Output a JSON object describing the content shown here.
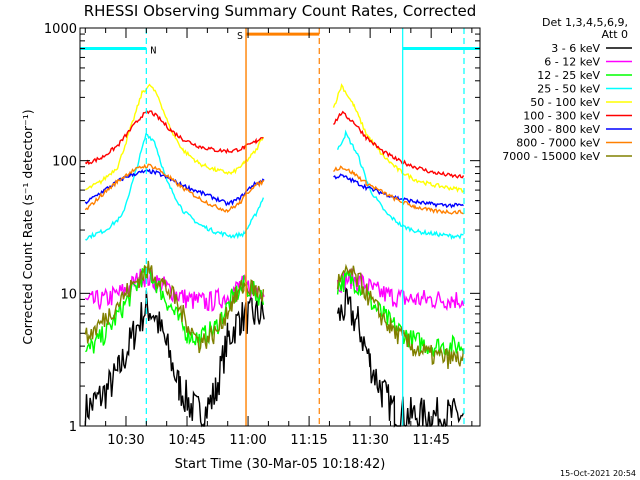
{
  "chart_data": {
    "type": "line",
    "title": "RHESSI Observing Summary Count Rates, Corrected",
    "xlabel": "Start Time (30-Mar-05 10:18:42)",
    "ylabel": "Corrected Count Rate (s⁻¹ detector⁻¹)",
    "x_ticks": [
      "10:30",
      "10:45",
      "11:00",
      "11:15",
      "11:30",
      "11:45"
    ],
    "x_range": [
      "10:18:42",
      "11:57:00"
    ],
    "y_scale": "log",
    "y_ticks": [
      "1",
      "10",
      "100",
      "1000"
    ],
    "ylim": [
      1,
      1000
    ],
    "footer": "15-Oct-2021 20:54",
    "legend_header": [
      "Det 1,3,4,5,6,9,",
      "Att 0"
    ],
    "legend_position": "right",
    "markers": [
      {
        "label": "N",
        "color": "#00ffff",
        "from": "10:18:42",
        "to": "10:35:00",
        "y": 700
      },
      {
        "label": "N",
        "color": "#00ffff",
        "from": "11:38:00",
        "to": "11:57:00",
        "y": 700
      },
      {
        "label": "S",
        "color": "#ff8000",
        "from": "10:59:30",
        "to": "11:17:30",
        "y": 900
      }
    ],
    "series": [
      {
        "name": "3 - 6 keV",
        "color": "#000000",
        "points": [
          [
            "10:20",
            1.3
          ],
          [
            "10:25",
            1.8
          ],
          [
            "10:28",
            2.5
          ],
          [
            "10:32",
            5.0
          ],
          [
            "10:35",
            8.0
          ],
          [
            "10:37",
            7.0
          ],
          [
            "10:40",
            4.0
          ],
          [
            "10:43",
            2.0
          ],
          [
            "10:46",
            1.4
          ],
          [
            "10:49",
            1.2
          ],
          [
            "10:52",
            1.8
          ],
          [
            "10:55",
            4.5
          ],
          [
            "10:58",
            6.5
          ],
          [
            "11:01",
            6.8
          ],
          [
            "11:04",
            7.0
          ]
        ],
        "points2": [
          [
            "11:22",
            6.5
          ],
          [
            "11:24",
            8.0
          ],
          [
            "11:27",
            6.0
          ],
          [
            "11:30",
            3.0
          ],
          [
            "11:33",
            1.8
          ],
          [
            "11:36",
            1.3
          ],
          [
            "11:40",
            1.2
          ],
          [
            "11:45",
            1.2
          ],
          [
            "11:50",
            1.2
          ],
          [
            "11:53",
            1.2
          ]
        ]
      },
      {
        "name": "6 - 12 keV",
        "color": "#ff00ff",
        "points": [
          [
            "10:20",
            8.5
          ],
          [
            "10:25",
            9.0
          ],
          [
            "10:30",
            10.5
          ],
          [
            "10:34",
            13.5
          ],
          [
            "10:37",
            12.5
          ],
          [
            "10:40",
            11.0
          ],
          [
            "10:45",
            9.0
          ],
          [
            "10:50",
            8.5
          ],
          [
            "10:55",
            9.5
          ],
          [
            "10:58",
            11.5
          ],
          [
            "11:01",
            11.0
          ],
          [
            "11:04",
            10.5
          ]
        ],
        "points2": [
          [
            "11:22",
            12.0
          ],
          [
            "11:25",
            13.0
          ],
          [
            "11:28",
            12.0
          ],
          [
            "11:31",
            10.5
          ],
          [
            "11:35",
            9.5
          ],
          [
            "11:40",
            9.0
          ],
          [
            "11:45",
            9.0
          ],
          [
            "11:50",
            9.0
          ],
          [
            "11:53",
            9.0
          ]
        ]
      },
      {
        "name": "12 - 25 keV",
        "color": "#00ff00",
        "points": [
          [
            "10:20",
            3.5
          ],
          [
            "10:25",
            5.0
          ],
          [
            "10:30",
            8.5
          ],
          [
            "10:34",
            13.5
          ],
          [
            "10:36",
            14.0
          ],
          [
            "10:39",
            10.0
          ],
          [
            "10:42",
            7.0
          ],
          [
            "10:45",
            5.0
          ],
          [
            "10:48",
            4.5
          ],
          [
            "10:52",
            5.5
          ],
          [
            "10:56",
            9.0
          ],
          [
            "10:59",
            11.5
          ],
          [
            "11:02",
            10.0
          ],
          [
            "11:04",
            9.0
          ]
        ],
        "points2": [
          [
            "11:22",
            11.5
          ],
          [
            "11:25",
            13.0
          ],
          [
            "11:28",
            11.0
          ],
          [
            "11:31",
            8.0
          ],
          [
            "11:35",
            6.0
          ],
          [
            "11:40",
            4.5
          ],
          [
            "11:45",
            4.0
          ],
          [
            "11:50",
            4.0
          ],
          [
            "11:53",
            4.0
          ]
        ]
      },
      {
        "name": "25 - 50 keV",
        "color": "#00ffff",
        "points": [
          [
            "10:20",
            26
          ],
          [
            "10:25",
            30
          ],
          [
            "10:29",
            38
          ],
          [
            "10:32",
            75
          ],
          [
            "10:35",
            160
          ],
          [
            "10:37",
            140
          ],
          [
            "10:40",
            70
          ],
          [
            "10:44",
            42
          ],
          [
            "10:48",
            33
          ],
          [
            "10:52",
            29
          ],
          [
            "10:56",
            27
          ],
          [
            "10:59",
            28
          ],
          [
            "11:02",
            40
          ],
          [
            "11:04",
            55
          ]
        ],
        "points2": [
          [
            "11:22",
            120
          ],
          [
            "11:24",
            160
          ],
          [
            "11:27",
            110
          ],
          [
            "11:30",
            60
          ],
          [
            "11:34",
            40
          ],
          [
            "11:38",
            32
          ],
          [
            "11:42",
            29
          ],
          [
            "11:46",
            28
          ],
          [
            "11:50",
            27
          ],
          [
            "11:53",
            27
          ]
        ]
      },
      {
        "name": "50 - 100 keV",
        "color": "#ffff00",
        "points": [
          [
            "10:20",
            60
          ],
          [
            "10:24",
            70
          ],
          [
            "10:28",
            90
          ],
          [
            "10:31",
            170
          ],
          [
            "10:34",
            330
          ],
          [
            "10:36",
            370
          ],
          [
            "10:38",
            300
          ],
          [
            "10:41",
            170
          ],
          [
            "10:44",
            120
          ],
          [
            "10:48",
            95
          ],
          [
            "10:52",
            85
          ],
          [
            "10:56",
            80
          ],
          [
            "10:59",
            95
          ],
          [
            "11:02",
            120
          ],
          [
            "11:04",
            160
          ]
        ],
        "points2": [
          [
            "11:21",
            250
          ],
          [
            "11:23",
            370
          ],
          [
            "11:26",
            260
          ],
          [
            "11:29",
            160
          ],
          [
            "11:33",
            110
          ],
          [
            "11:37",
            85
          ],
          [
            "11:41",
            72
          ],
          [
            "11:45",
            66
          ],
          [
            "11:50",
            62
          ],
          [
            "11:53",
            60
          ]
        ]
      },
      {
        "name": "100 - 300 keV",
        "color": "#ff0000",
        "points": [
          [
            "10:20",
            95
          ],
          [
            "10:24",
            105
          ],
          [
            "10:28",
            130
          ],
          [
            "10:31",
            170
          ],
          [
            "10:34",
            220
          ],
          [
            "10:36",
            235
          ],
          [
            "10:38",
            210
          ],
          [
            "10:41",
            170
          ],
          [
            "10:44",
            145
          ],
          [
            "10:48",
            128
          ],
          [
            "10:52",
            120
          ],
          [
            "10:56",
            118
          ],
          [
            "10:59",
            125
          ],
          [
            "11:02",
            140
          ],
          [
            "11:04",
            155
          ]
        ],
        "points2": [
          [
            "11:21",
            190
          ],
          [
            "11:23",
            230
          ],
          [
            "11:26",
            195
          ],
          [
            "11:29",
            150
          ],
          [
            "11:33",
            118
          ],
          [
            "11:37",
            100
          ],
          [
            "11:41",
            90
          ],
          [
            "11:45",
            82
          ],
          [
            "11:50",
            77
          ],
          [
            "11:53",
            75
          ]
        ]
      },
      {
        "name": "300 - 800 keV",
        "color": "#0000ff",
        "points": [
          [
            "10:20",
            48
          ],
          [
            "10:24",
            58
          ],
          [
            "10:28",
            70
          ],
          [
            "10:31",
            78
          ],
          [
            "10:34",
            82
          ],
          [
            "10:36",
            83
          ],
          [
            "10:38",
            80
          ],
          [
            "10:41",
            72
          ],
          [
            "10:44",
            65
          ],
          [
            "10:48",
            58
          ],
          [
            "10:52",
            52
          ],
          [
            "10:55",
            47
          ],
          [
            "10:58",
            52
          ],
          [
            "11:01",
            65
          ],
          [
            "11:04",
            72
          ]
        ],
        "points2": [
          [
            "11:21",
            75
          ],
          [
            "11:23",
            77
          ],
          [
            "11:26",
            70
          ],
          [
            "11:29",
            63
          ],
          [
            "11:33",
            57
          ],
          [
            "11:37",
            52
          ],
          [
            "11:41",
            49
          ],
          [
            "11:45",
            47
          ],
          [
            "11:50",
            46
          ],
          [
            "11:53",
            46
          ]
        ]
      },
      {
        "name": "800 - 7000 keV",
        "color": "#ff8000",
        "points": [
          [
            "10:20",
            42
          ],
          [
            "10:24",
            55
          ],
          [
            "10:28",
            70
          ],
          [
            "10:31",
            82
          ],
          [
            "10:34",
            90
          ],
          [
            "10:36",
            92
          ],
          [
            "10:38",
            86
          ],
          [
            "10:41",
            73
          ],
          [
            "10:44",
            62
          ],
          [
            "10:48",
            52
          ],
          [
            "10:52",
            45
          ],
          [
            "10:55",
            42
          ],
          [
            "10:58",
            48
          ],
          [
            "11:01",
            63
          ],
          [
            "11:04",
            70
          ]
        ],
        "points2": [
          [
            "11:21",
            85
          ],
          [
            "11:23",
            90
          ],
          [
            "11:26",
            80
          ],
          [
            "11:29",
            68
          ],
          [
            "11:33",
            58
          ],
          [
            "11:37",
            50
          ],
          [
            "11:41",
            45
          ],
          [
            "11:45",
            42
          ],
          [
            "11:50",
            41
          ],
          [
            "11:53",
            41
          ]
        ]
      },
      {
        "name": "7000 - 15000 keV",
        "color": "#808000",
        "points": [
          [
            "10:20",
            4.5
          ],
          [
            "10:25",
            6.5
          ],
          [
            "10:30",
            10.0
          ],
          [
            "10:34",
            14.0
          ],
          [
            "10:36",
            15.0
          ],
          [
            "10:39",
            12.0
          ],
          [
            "10:42",
            9.0
          ],
          [
            "10:45",
            6.0
          ],
          [
            "10:48",
            4.2
          ],
          [
            "10:52",
            5.0
          ],
          [
            "10:56",
            8.5
          ],
          [
            "10:59",
            11.5
          ],
          [
            "11:02",
            10.5
          ],
          [
            "11:04",
            9.5
          ]
        ],
        "points2": [
          [
            "11:22",
            12.0
          ],
          [
            "11:25",
            14.5
          ],
          [
            "11:28",
            11.5
          ],
          [
            "11:31",
            8.0
          ],
          [
            "11:35",
            5.5
          ],
          [
            "11:40",
            4.0
          ],
          [
            "11:45",
            3.4
          ],
          [
            "11:50",
            3.2
          ],
          [
            "11:53",
            3.2
          ]
        ]
      }
    ]
  }
}
